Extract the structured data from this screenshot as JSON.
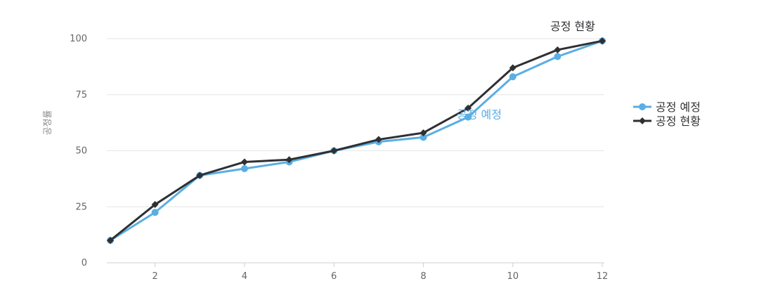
{
  "colors": {
    "plan": "#5aaee3",
    "actual": "#2f3033",
    "grid": "#e6e6e6",
    "axis": "#cfcfcf"
  },
  "chart_data": {
    "type": "line",
    "x": [
      1,
      2,
      3,
      4,
      5,
      6,
      7,
      8,
      9,
      10,
      11,
      12
    ],
    "xticks": [
      "2",
      "4",
      "6",
      "8",
      "10",
      "12"
    ],
    "xtick_values": [
      2,
      4,
      6,
      8,
      10,
      12
    ],
    "yticks": [
      "0",
      "25",
      "50",
      "75",
      "100"
    ],
    "ytick_values": [
      0,
      25,
      50,
      75,
      100
    ],
    "xlim": [
      1,
      12
    ],
    "ylim": [
      0,
      100
    ],
    "ylabel": "공정률",
    "grid": "horizontal",
    "legend_position": "right",
    "series": [
      {
        "name": "공정 예정",
        "marker": "circle",
        "color": "#5aaee3",
        "values": [
          10,
          22.5,
          39,
          42,
          45,
          50,
          54,
          56,
          65,
          83,
          92,
          99
        ]
      },
      {
        "name": "공정 현황",
        "marker": "diamond",
        "color": "#2f3033",
        "values": [
          10,
          26,
          39,
          45,
          46,
          50,
          55,
          58,
          69,
          87,
          95,
          99
        ]
      }
    ],
    "series_labels": [
      {
        "text": "공정 예정",
        "x": 8.7,
        "y": 65
      },
      {
        "text": "공정 현황",
        "x": 12,
        "y": 99
      }
    ]
  }
}
